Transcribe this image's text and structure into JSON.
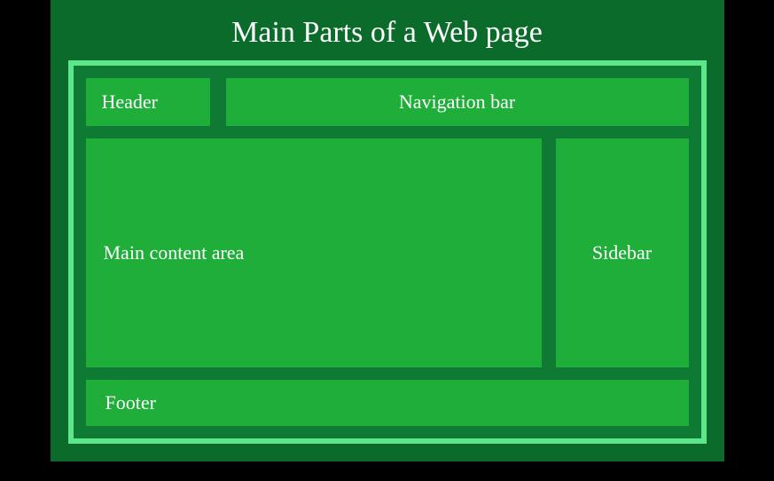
{
  "title": "Main Parts of a Web page",
  "layout": {
    "type": "infographic",
    "background_outer": "#000000",
    "background_slide": "#0a6b2a",
    "frame_border_color": "#5ee68a",
    "frame_border_width": 6,
    "frame_background": "#0f7a33",
    "box_background": "#1fae3a",
    "text_color": "#ffffff",
    "title_fontsize": 34,
    "label_fontsize": 22,
    "gap": 14
  },
  "boxes": {
    "header": {
      "label": "Header",
      "row": 0,
      "width": 140
    },
    "nav": {
      "label": "Navigation bar",
      "row": 0,
      "flex": 1
    },
    "main": {
      "label": "Main content area",
      "row": 1,
      "flex": 1
    },
    "sidebar": {
      "label": "Sidebar",
      "row": 1,
      "width": 150
    },
    "footer": {
      "label": "Footer",
      "row": 2,
      "flex": 1
    }
  }
}
